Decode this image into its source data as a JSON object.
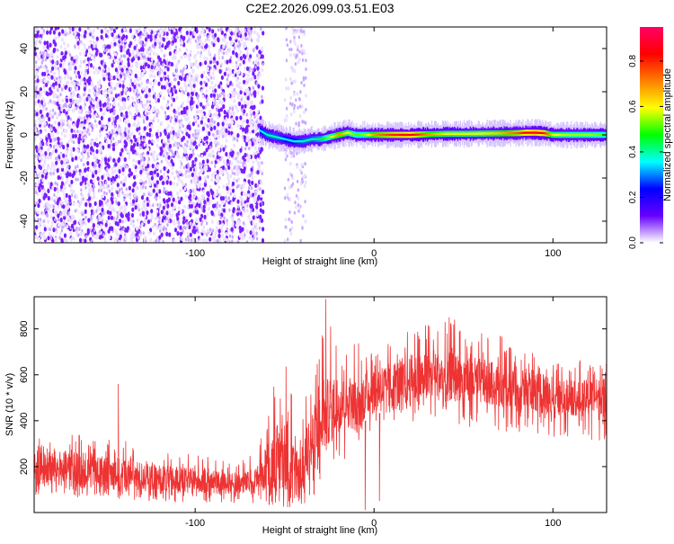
{
  "title": "C2E2.2026.099.03.51.E03",
  "chart_data": [
    {
      "type": "heatmap",
      "xlabel": "Height of straight line (km)",
      "ylabel": "Frequency (Hz)",
      "xlim": [
        -190,
        130
      ],
      "ylim": [
        -50,
        50
      ],
      "xticks": [
        -100,
        0,
        100
      ],
      "yticks": [
        -40,
        -20,
        0,
        20,
        40
      ],
      "colorbar": {
        "label": "Normalized spectral amplitude",
        "range": [
          0,
          0.95
        ],
        "ticks": [
          0,
          0.2,
          0.4,
          0.6,
          0.8
        ],
        "tick_labels": [
          "0.0",
          "0.2",
          "0.4",
          "0.6",
          "0.8"
        ],
        "colormap": [
          "#ffffff",
          "#6600ff",
          "#0000ff",
          "#00ffff",
          "#00ff00",
          "#ffff00",
          "#ff7f00",
          "#ff0000",
          "#ff0066"
        ]
      },
      "regions": [
        {
          "description": "broadband noise",
          "x_range": [
            -190,
            -62
          ],
          "y_range": [
            -50,
            50
          ],
          "amplitude": 0.05
        },
        {
          "description": "sparse noise column",
          "x_range": [
            -50,
            -38
          ],
          "y_range": [
            -50,
            50
          ],
          "amplitude": 0.02
        }
      ],
      "ridge": {
        "x": [
          -64,
          -60,
          -55,
          -50,
          -45,
          -40,
          -35,
          -30,
          -25,
          -20,
          -15,
          -10,
          -5,
          0,
          10,
          20,
          30,
          40,
          50,
          60,
          70,
          80,
          85,
          90,
          95,
          100,
          110,
          120,
          130
        ],
        "y": [
          2,
          0,
          -1,
          -2,
          -3,
          -3,
          -2,
          -2,
          -1,
          0,
          1,
          0,
          0,
          0,
          0,
          0,
          0.3,
          0.5,
          0.5,
          0.6,
          0.7,
          0.8,
          1.0,
          1.0,
          0.8,
          0,
          0,
          0,
          0
        ],
        "amplitude": [
          0.35,
          0.4,
          0.4,
          0.35,
          0.35,
          0.4,
          0.4,
          0.45,
          0.55,
          0.7,
          0.6,
          0.5,
          0.55,
          0.7,
          0.8,
          0.85,
          0.7,
          0.6,
          0.6,
          0.6,
          0.65,
          0.75,
          0.85,
          0.9,
          0.8,
          0.6,
          0.55,
          0.55,
          0.5
        ]
      }
    },
    {
      "type": "line",
      "xlabel": "Height of straight line (km)",
      "ylabel": "SNR (10 * v/v)",
      "xlim": [
        -190,
        130
      ],
      "ylim": [
        0,
        940
      ],
      "xticks": [
        -100,
        0,
        100
      ],
      "yticks": [
        200,
        400,
        600,
        800
      ],
      "color": "#ee3333",
      "envelope": {
        "x": [
          -190,
          -180,
          -170,
          -160,
          -150,
          -140,
          -130,
          -120,
          -110,
          -100,
          -90,
          -80,
          -70,
          -65,
          -60,
          -55,
          -50,
          -45,
          -40,
          -35,
          -30,
          -25,
          -20,
          -15,
          -10,
          -5,
          0,
          10,
          20,
          30,
          40,
          50,
          60,
          70,
          80,
          90,
          100,
          110,
          120,
          130
        ],
        "min": [
          60,
          70,
          70,
          60,
          60,
          50,
          50,
          40,
          40,
          40,
          40,
          40,
          40,
          40,
          30,
          30,
          10,
          20,
          30,
          40,
          60,
          100,
          150,
          250,
          300,
          320,
          380,
          380,
          380,
          400,
          400,
          380,
          360,
          350,
          350,
          340,
          300,
          300,
          300,
          320
        ],
        "max": [
          330,
          340,
          350,
          340,
          330,
          320,
          300,
          280,
          270,
          250,
          250,
          230,
          250,
          300,
          450,
          600,
          680,
          500,
          450,
          650,
          770,
          930,
          750,
          700,
          780,
          750,
          700,
          750,
          800,
          820,
          830,
          820,
          790,
          770,
          760,
          700,
          650,
          650,
          680,
          680
        ],
        "typical_low": [
          100,
          110,
          110,
          100,
          100,
          90,
          90,
          80,
          80,
          80,
          80,
          80,
          80,
          90,
          100,
          100,
          60,
          80,
          100,
          150,
          230,
          300,
          350,
          370,
          350,
          400,
          430,
          440,
          460,
          480,
          490,
          480,
          470,
          460,
          450,
          440,
          420,
          420,
          420,
          430
        ],
        "typical_high": [
          260,
          270,
          270,
          260,
          250,
          240,
          220,
          210,
          200,
          190,
          180,
          170,
          180,
          200,
          300,
          380,
          400,
          300,
          350,
          450,
          520,
          600,
          600,
          580,
          580,
          620,
          640,
          660,
          690,
          700,
          700,
          690,
          670,
          650,
          640,
          620,
          580,
          570,
          580,
          590
        ]
      },
      "spikes": [
        {
          "x": -143,
          "y": 560
        },
        {
          "x": -27,
          "y": 930
        },
        {
          "x": 42,
          "y": 850
        },
        {
          "x": 45,
          "y": 840
        }
      ],
      "dips": [
        {
          "x": -5,
          "y": 10
        },
        {
          "x": 3,
          "y": 50
        }
      ]
    }
  ]
}
